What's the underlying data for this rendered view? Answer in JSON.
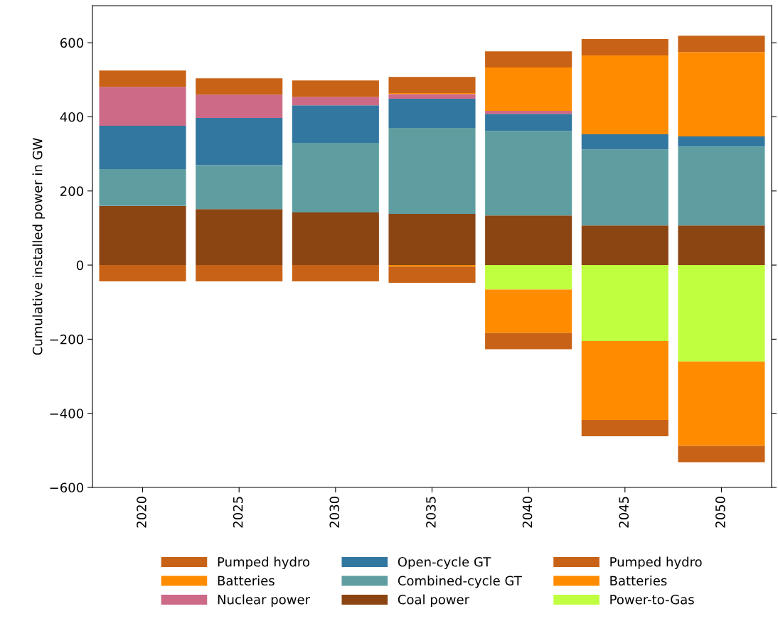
{
  "chart_data": {
    "type": "bar",
    "stacked": true,
    "ylabel": "Cumulative installed power in GW",
    "categories": [
      "2020",
      "2025",
      "2030",
      "2035",
      "2040",
      "2045",
      "2050"
    ],
    "ylim": [
      -600,
      700
    ],
    "yticks": [
      {
        "value": -600,
        "label": "−600"
      },
      {
        "value": -400,
        "label": "−400"
      },
      {
        "value": -200,
        "label": "−200"
      },
      0,
      200,
      400,
      600
    ],
    "legend": "bottom",
    "grid": false,
    "series": [
      {
        "name": "Coal power",
        "color": "#8b4513",
        "values": [
          160,
          151,
          142,
          138,
          134,
          107,
          107
        ]
      },
      {
        "name": "Combined-cycle GT",
        "color": "#5f9ea0",
        "values": [
          99,
          119,
          188,
          232,
          228,
          205,
          213
        ]
      },
      {
        "name": "Open-cycle GT",
        "color": "#3277a0",
        "values": [
          117,
          127,
          101,
          79,
          46,
          41,
          27
        ]
      },
      {
        "name": "Nuclear power",
        "color": "#cc6a87",
        "values": [
          105,
          63,
          23,
          13,
          8,
          0,
          0
        ]
      },
      {
        "name": "Batteries",
        "color": "#ff8c00",
        "values": [
          0,
          0,
          0,
          2,
          117,
          213,
          228
        ]
      },
      {
        "name": "Pumped hydro",
        "color": "#c86216",
        "values": [
          44,
          44,
          44,
          44,
          44,
          44,
          44
        ]
      },
      {
        "name": "Power-to-Gas",
        "color": "#c0ff40",
        "values": [
          0,
          0,
          0,
          0,
          -66,
          -205,
          -260
        ]
      },
      {
        "name": "Batteries",
        "color": "#ff8c00",
        "values": [
          0,
          0,
          0,
          -4,
          -117,
          -213,
          -228
        ]
      },
      {
        "name": "Pumped hydro",
        "color": "#c86216",
        "values": [
          -44,
          -44,
          -44,
          -44,
          -44,
          -44,
          -44
        ]
      }
    ]
  }
}
